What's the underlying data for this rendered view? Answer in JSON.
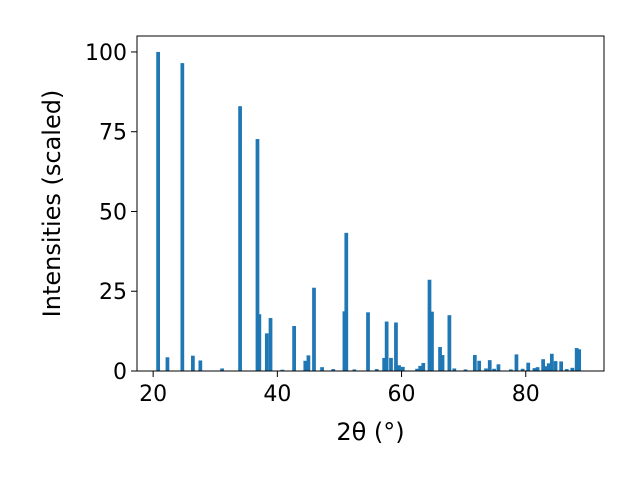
{
  "chart_data": {
    "type": "bar",
    "xlabel": "2θ (°)",
    "ylabel": "Intensities (scaled)",
    "xlim": [
      17.4,
      92.6
    ],
    "ylim": [
      0,
      105
    ],
    "xticks": [
      20,
      40,
      60,
      80
    ],
    "yticks": [
      0,
      25,
      50,
      75,
      100
    ],
    "bar_color": "#1f77b4",
    "bar_width": 0.6,
    "grid": false,
    "x": [
      20.8,
      22.3,
      24.7,
      26.4,
      27.6,
      31.1,
      34.0,
      36.8,
      37.1,
      38.3,
      38.9,
      40.8,
      42.7,
      44.5,
      45.0,
      45.9,
      47.2,
      49.0,
      50.8,
      51.1,
      52.4,
      54.6,
      56.0,
      57.2,
      57.6,
      58.3,
      59.1,
      59.6,
      60.2,
      62.5,
      63.0,
      63.5,
      64.5,
      64.9,
      66.2,
      66.6,
      67.7,
      68.5,
      70.3,
      71.8,
      72.5,
      73.6,
      74.2,
      74.9,
      75.6,
      77.6,
      78.5,
      79.5,
      80.4,
      81.4,
      81.9,
      82.8,
      83.3,
      83.7,
      84.2,
      84.8,
      85.7,
      86.6,
      87.5,
      88.2,
      88.6
    ],
    "y": [
      100,
      4.3,
      96.5,
      4.8,
      3.3,
      0.8,
      83,
      72.7,
      17.8,
      11.8,
      16.6,
      0.4,
      14.1,
      3.2,
      4.9,
      26.1,
      1.2,
      0.6,
      18.7,
      43.3,
      0.5,
      18.4,
      0.6,
      4.1,
      15.5,
      4.1,
      15.2,
      1.8,
      1.3,
      0.7,
      1.6,
      2.5,
      28.6,
      18.6,
      7.5,
      5.0,
      17.5,
      0.8,
      0.5,
      5.0,
      3.2,
      0.8,
      3.4,
      0.7,
      2.1,
      0.5,
      5.2,
      0.7,
      2.6,
      0.9,
      1.2,
      3.7,
      1.5,
      2.4,
      5.4,
      3.1,
      3.0,
      0.6,
      1.0,
      7.2,
      6.8
    ]
  }
}
